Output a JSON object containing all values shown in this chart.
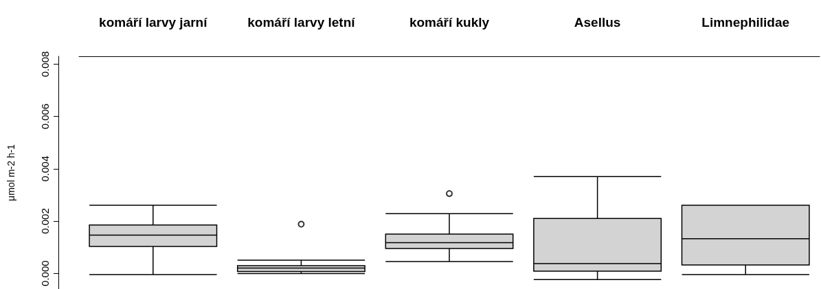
{
  "chart_data": {
    "type": "box",
    "ylabel": "μmol m-2 h-1",
    "categories": [
      "komáří larvy jarní",
      "komáří larvy letní",
      "komáří kukly",
      "Asellus",
      "Limnephilidae"
    ],
    "series": [
      {
        "color": "#d3d3d3",
        "boxes": [
          {
            "low": -5e-05,
            "q1": 0.00103,
            "median": 0.00146,
            "q3": 0.00185,
            "high": 0.0026
          },
          {
            "low": -1e-05,
            "q1": 7e-05,
            "median": 0.0002,
            "q3": 0.00029,
            "high": 0.0005,
            "outliers": [
              0.00188
            ]
          },
          {
            "low": 0.00045,
            "q1": 0.00095,
            "median": 0.00117,
            "q3": 0.0015,
            "high": 0.00228,
            "outliers": [
              0.00305
            ]
          },
          {
            "low": -0.00024,
            "q1": 8e-05,
            "median": 0.00037,
            "q3": 0.0021,
            "high": 0.0037
          },
          {
            "low": -5e-05,
            "q1": 0.00032,
            "median": 0.00132,
            "q3": 0.0026,
            "high": 0.0026
          }
        ]
      }
    ],
    "ylim": [
      -0.0006,
      0.0083
    ],
    "yticks": [
      {
        "value": 0,
        "label": "0.000"
      },
      {
        "value": 0.002,
        "label": "0.002"
      },
      {
        "value": 0.004,
        "label": "0.004"
      },
      {
        "value": 0.006,
        "label": "0.006"
      },
      {
        "value": 0.008,
        "label": "0.008"
      }
    ]
  }
}
